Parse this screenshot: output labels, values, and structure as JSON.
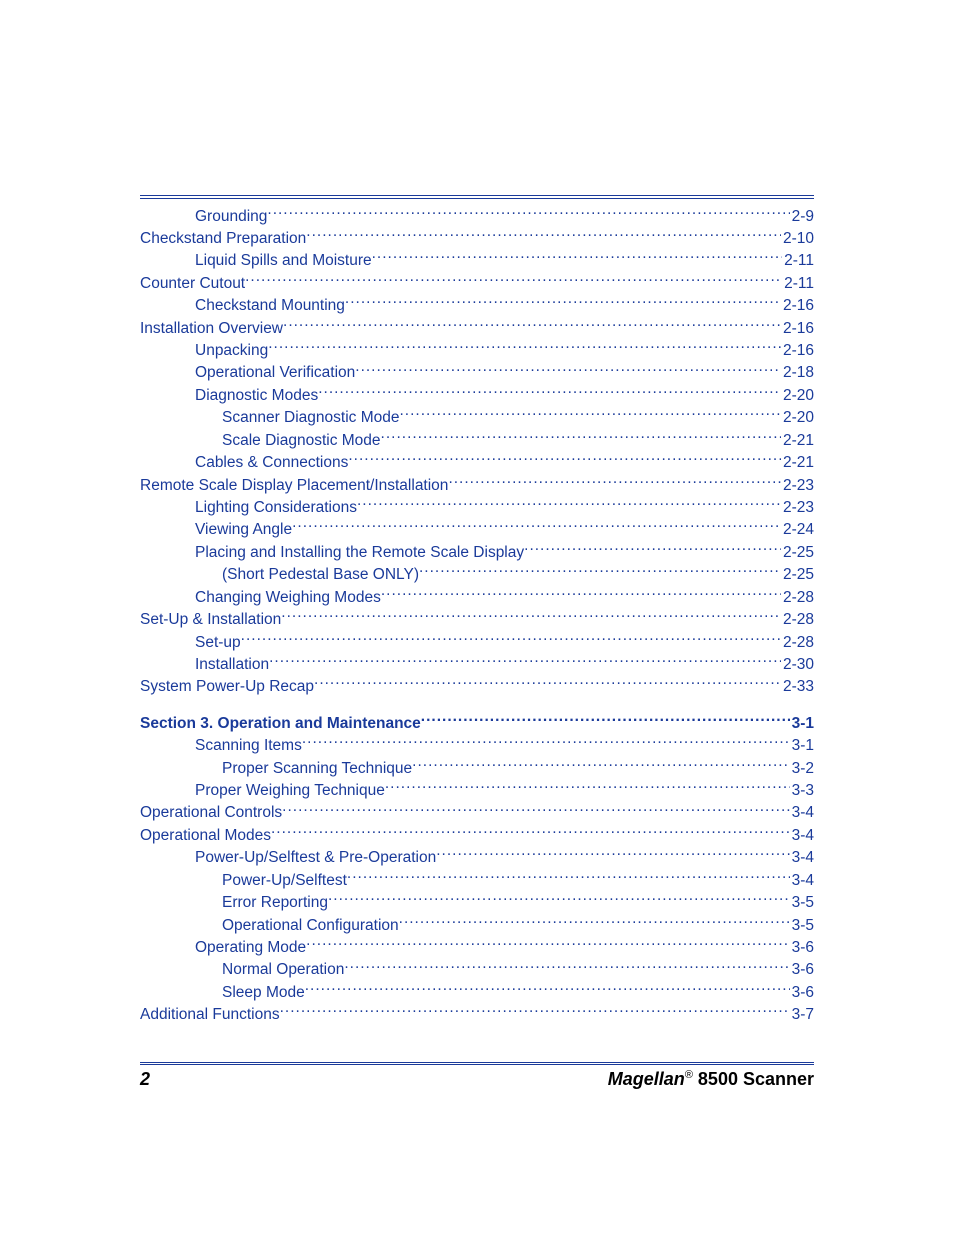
{
  "toc": {
    "link_color": "#1a3a9a",
    "entries": [
      {
        "label": "Grounding",
        "page": "2-9",
        "indent": 1
      },
      {
        "label": "Checkstand Preparation",
        "page": "2-10",
        "indent": 0
      },
      {
        "label": "Liquid Spills and Moisture",
        "page": "2-11",
        "indent": 1
      },
      {
        "label": "Counter Cutout",
        "page": "2-11",
        "indent": 0
      },
      {
        "label": "Checkstand Mounting",
        "page": "2-16",
        "indent": 1
      },
      {
        "label": "Installation Overview",
        "page": "2-16",
        "indent": 0
      },
      {
        "label": "Unpacking",
        "page": "2-16",
        "indent": 1
      },
      {
        "label": "Operational Verification",
        "page": "2-18",
        "indent": 1
      },
      {
        "label": "Diagnostic Modes",
        "page": "2-20",
        "indent": 1
      },
      {
        "label": "Scanner Diagnostic Mode",
        "page": "2-20",
        "indent": 2
      },
      {
        "label": "Scale Diagnostic Mode",
        "page": "2-21",
        "indent": 2
      },
      {
        "label": "Cables & Connections",
        "page": "2-21",
        "indent": 1
      },
      {
        "label": "Remote Scale Display Placement/Installation",
        "page": "2-23",
        "indent": 0
      },
      {
        "label": "Lighting Considerations",
        "page": "2-23",
        "indent": 1
      },
      {
        "label": "Viewing Angle",
        "page": "2-24",
        "indent": 1
      },
      {
        "label": "Placing and Installing the Remote Scale Display",
        "page": "2-25",
        "indent": 1
      },
      {
        "label": "(Short Pedestal Base ONLY)",
        "page": "2-25",
        "indent": 2
      },
      {
        "label": "Changing Weighing Modes",
        "page": "2-28",
        "indent": 1
      },
      {
        "label": "Set-Up & Installation",
        "page": "2-28",
        "indent": 0
      },
      {
        "label": "Set-up",
        "page": "2-28",
        "indent": 1
      },
      {
        "label": "Installation",
        "page": "2-30",
        "indent": 1
      },
      {
        "label": "System Power-Up Recap",
        "page": "2-33",
        "indent": 0
      },
      {
        "gap": true
      },
      {
        "label": "Section 3. Operation and Maintenance",
        "page": "3-1",
        "indent": 0,
        "bold": true
      },
      {
        "label": "Scanning Items",
        "page": "3-1",
        "indent": 1
      },
      {
        "label": "Proper Scanning Technique",
        "page": "3-2",
        "indent": 2
      },
      {
        "label": "Proper Weighing Technique",
        "page": "3-3",
        "indent": 1
      },
      {
        "label": "Operational Controls",
        "page": "3-4",
        "indent": 0
      },
      {
        "label": "Operational Modes",
        "page": "3-4",
        "indent": 0
      },
      {
        "label": "Power-Up/Selftest & Pre-Operation",
        "page": "3-4",
        "indent": 1
      },
      {
        "label": "Power-Up/Selftest",
        "page": "3-4",
        "indent": 2
      },
      {
        "label": "Error Reporting",
        "page": "3-5",
        "indent": 2
      },
      {
        "label": "Operational Configuration",
        "page": "3-5",
        "indent": 2
      },
      {
        "label": "Operating Mode",
        "page": "3-6",
        "indent": 1
      },
      {
        "label": "Normal Operation",
        "page": "3-6",
        "indent": 2
      },
      {
        "label": "Sleep Mode",
        "page": "3-6",
        "indent": 2
      },
      {
        "label": "Additional Functions",
        "page": "3-7",
        "indent": 0
      }
    ]
  },
  "footer": {
    "page_number": "2",
    "title_brand": "Magellan",
    "title_reg": "®",
    "title_rest": " 8500 Scanner"
  }
}
